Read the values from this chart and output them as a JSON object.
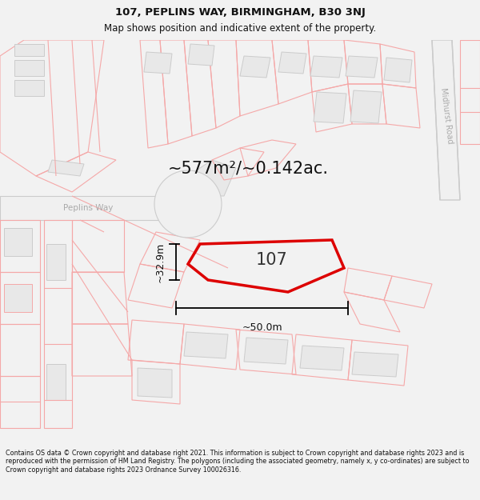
{
  "title_line1": "107, PEPLINS WAY, BIRMINGHAM, B30 3NJ",
  "title_line2": "Map shows position and indicative extent of the property.",
  "area_text": "~577m²/~0.142ac.",
  "property_label": "107",
  "dim_vertical": "~32.9m",
  "dim_horizontal": "~50.0m",
  "road_label": "Peplins Way",
  "road_label2": "Midhurst Road",
  "footer_text": "Contains OS data © Crown copyright and database right 2021. This information is subject to Crown copyright and database rights 2023 and is reproduced with the permission of HM Land Registry. The polygons (including the associated geometry, namely x, y co-ordinates) are subject to Crown copyright and database rights 2023 Ordnance Survey 100026316.",
  "bg_color": "#f2f2f2",
  "map_bg": "#ffffff",
  "lc": "#f5a8a8",
  "gc": "#cccccc",
  "gc_fill": "#e8e8e8",
  "property_color": "#dd0000",
  "road_fill": "#f0f0f0",
  "road_edge": "#cccccc",
  "title_fs": 9.5,
  "subtitle_fs": 8.5,
  "area_fs": 15,
  "label_fs": 15,
  "footer_fs": 5.8
}
